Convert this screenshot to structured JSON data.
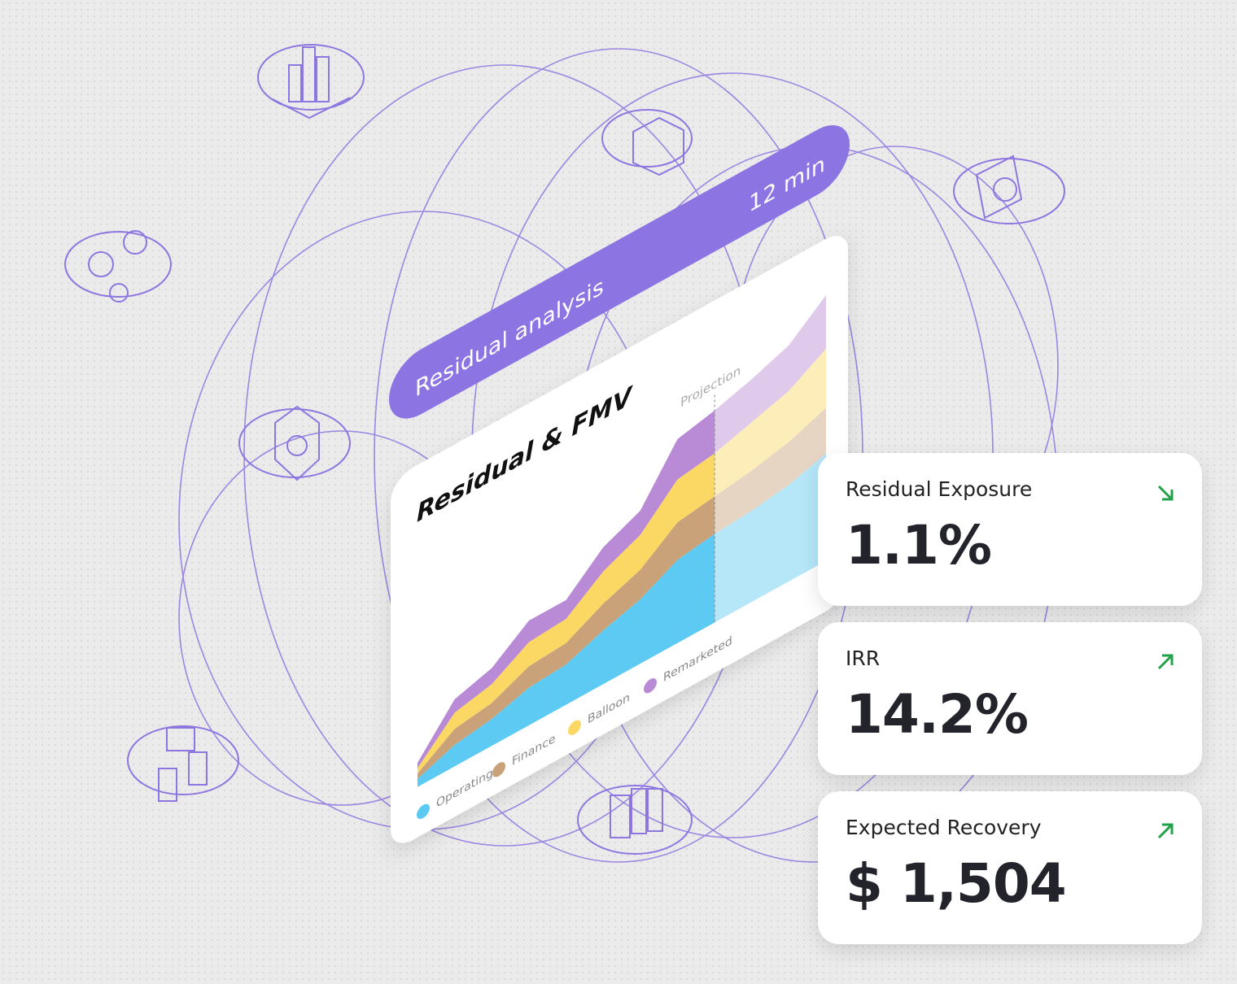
{
  "chart_data": {
    "type": "area",
    "banner": "Residual analysis",
    "duration": "12 min",
    "title": "Residual & FMV",
    "stacked": true,
    "ylim": [
      0,
      100
    ],
    "annotation": {
      "text": "Projection",
      "x": 8
    },
    "series": [
      {
        "name": "Operating",
        "color": "#5ccaf2",
        "values": [
          3,
          8,
          10,
          14,
          15,
          20,
          24,
          31,
          33,
          34,
          36,
          40
        ]
      },
      {
        "name": "Finance",
        "color": "#c9a27a",
        "values": [
          2,
          6,
          6,
          8,
          8,
          10,
          11,
          14,
          14,
          15,
          16,
          17
        ]
      },
      {
        "name": "Balloon",
        "color": "#fbd863",
        "values": [
          2,
          6,
          7,
          9,
          9,
          12,
          13,
          16,
          16,
          18,
          19,
          22
        ]
      },
      {
        "name": "Remarketed",
        "color": "#b98ad6",
        "values": [
          2,
          5,
          6,
          8,
          7,
          9,
          9,
          15,
          16,
          16,
          17,
          20
        ]
      }
    ]
  },
  "metrics": [
    {
      "label": "Residual Exposure",
      "value": "1.1%",
      "trend": "down"
    },
    {
      "label": "IRR",
      "value": "14.2%",
      "trend": "up"
    },
    {
      "label": "Expected Recovery",
      "value": "$ 1,504",
      "trend": "up"
    }
  ]
}
